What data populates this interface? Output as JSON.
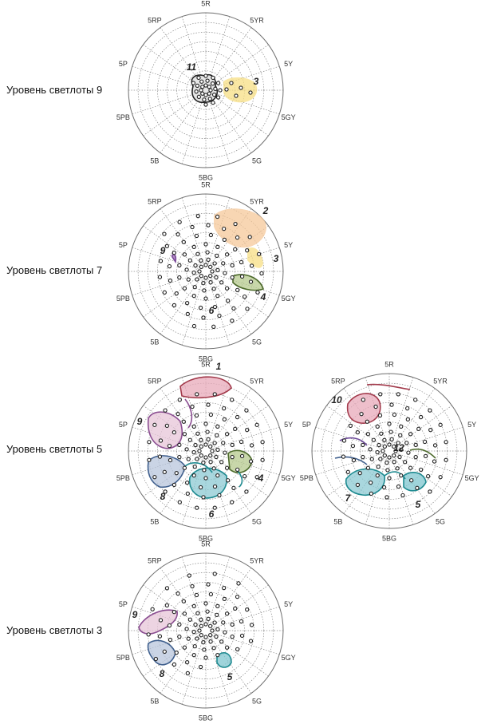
{
  "hue_labels": [
    "5R",
    "5YR",
    "5Y",
    "5GY",
    "5G",
    "5BG",
    "5B",
    "5PB",
    "5P",
    "5RP"
  ],
  "colors": {
    "grid": "#8a8a8a",
    "outer_ring": "#6f6f6f",
    "dot_stroke": "#222222",
    "region_1": "#e8a9b9",
    "region_2": "#f6c89a",
    "region_3": "#f7df84",
    "region_4": "#b6c98d",
    "region_5": "#7fc6cf",
    "region_6": "#8cc9d3",
    "region_7": "#8cc9d3",
    "region_8": "#b8c6dc",
    "region_9": "#e7c6d8",
    "region_10": "#e8a9b9",
    "region_11": "#dddddd"
  },
  "panels": [
    {
      "label": "Уровень светлоты 9",
      "numbers": [
        "11",
        "3"
      ]
    },
    {
      "label": "Уровень светлоты 7",
      "numbers": [
        "2",
        "3",
        "4",
        "6",
        "9"
      ]
    },
    {
      "label": "Уровень светлоты 5",
      "numbers": [
        "1",
        "9",
        "4",
        "8",
        "6"
      ]
    },
    {
      "label": "",
      "numbers": [
        "10",
        "12",
        "7",
        "5"
      ]
    },
    {
      "label": "Уровень светлоты 3",
      "numbers": [
        "9",
        "8",
        "5"
      ]
    }
  ]
}
